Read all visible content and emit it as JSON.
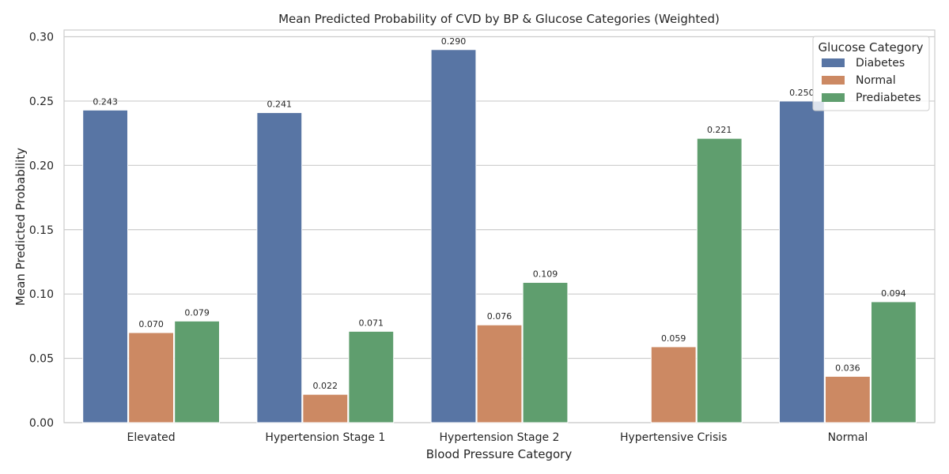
{
  "chart_data": {
    "type": "bar",
    "title": "Mean Predicted Probability of CVD by BP & Glucose Categories (Weighted)",
    "xlabel": "Blood Pressure Category",
    "ylabel": "Mean Predicted Probability",
    "ylim": [
      0,
      0.3
    ],
    "yticks": [
      "0.00",
      "0.05",
      "0.10",
      "0.15",
      "0.20",
      "0.25",
      "0.30"
    ],
    "grid": true,
    "categories": [
      "Elevated",
      "Hypertension Stage 1",
      "Hypertension Stage 2",
      "Hypertensive Crisis",
      "Normal"
    ],
    "legend": {
      "title": "Glucose Category",
      "placement": "top-right"
    },
    "series": [
      {
        "name": "Diabetes",
        "color": "#5875a4",
        "values": [
          0.243,
          0.241,
          0.29,
          null,
          0.25
        ],
        "labels": [
          "0.243",
          "0.241",
          "0.290",
          "",
          "0.250"
        ]
      },
      {
        "name": "Normal",
        "color": "#cc8963",
        "values": [
          0.07,
          0.022,
          0.076,
          0.059,
          0.036
        ],
        "labels": [
          "0.070",
          "0.022",
          "0.076",
          "0.059",
          "0.036"
        ]
      },
      {
        "name": "Prediabetes",
        "color": "#5f9e6e",
        "values": [
          0.079,
          0.071,
          0.109,
          0.221,
          0.094
        ],
        "labels": [
          "0.079",
          "0.071",
          "0.109",
          "0.221",
          "0.094"
        ]
      }
    ]
  }
}
